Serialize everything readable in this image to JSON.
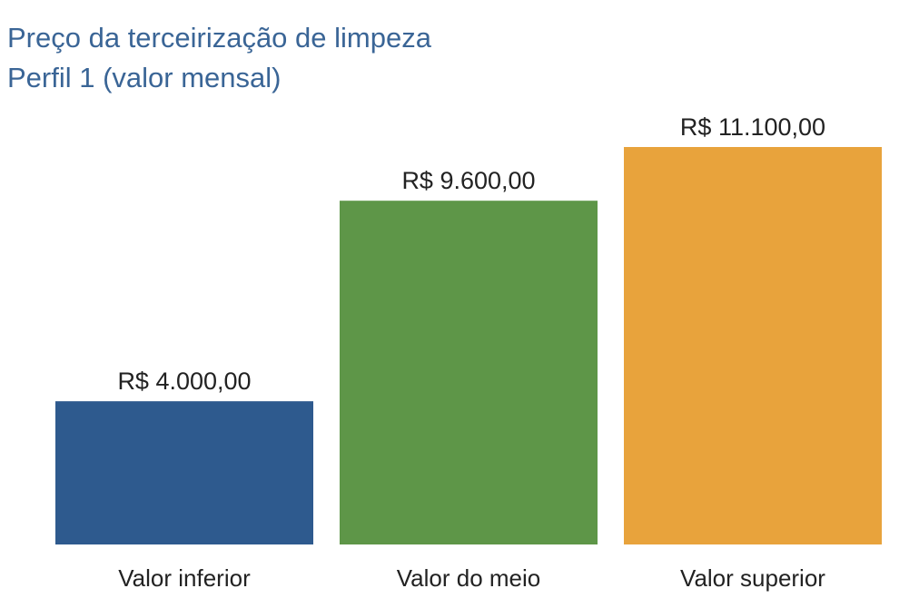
{
  "chart_data": {
    "type": "bar",
    "title": "Preço da terceirização de limpeza",
    "subtitle": "Perfil 1 (valor mensal)",
    "xlabel": "",
    "ylabel": "",
    "categories": [
      "Valor inferior",
      "Valor do meio",
      "Valor superior"
    ],
    "values": [
      4000,
      9600,
      11100
    ],
    "value_labels": [
      "R$ 4.000,00",
      "R$ 9.600,00",
      "R$ 11.100,00"
    ],
    "colors": [
      "#2e5a8e",
      "#5e9648",
      "#e8a33c"
    ],
    "ylim": [
      0,
      11100
    ],
    "grid": false,
    "legend": "none"
  }
}
